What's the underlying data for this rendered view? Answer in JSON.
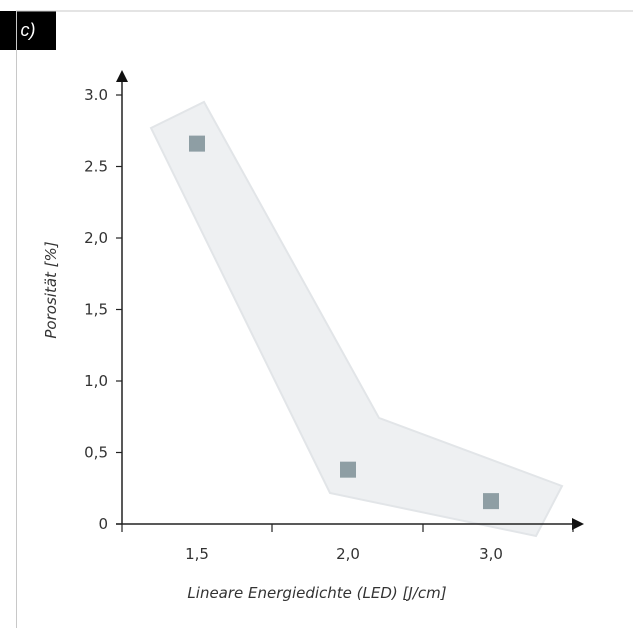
{
  "panel_label": "c)",
  "colors": {
    "marker": "#8e9ea4",
    "band_fill": "#eef0f2",
    "band_stroke": "#e2e5e8",
    "axis": "#222222",
    "frame": "#c8c8c8"
  },
  "chart_data": {
    "type": "scatter",
    "title": "",
    "xlabel": "Lineare Energiedichte (LED) [J/cm]",
    "ylabel": "Porosität [%]",
    "categories": [
      "1,5",
      "2,0",
      "3,0"
    ],
    "y_ticks": [
      "0",
      "0,5",
      "1,0",
      "1,5",
      "2,0",
      "2.5",
      "3.0"
    ],
    "ylim": [
      0,
      3.0
    ],
    "grid": false,
    "legend": false,
    "series": [
      {
        "x": [
          "1,5",
          "2,0",
          "3,0"
        ],
        "values": [
          2.66,
          0.38,
          0.16
        ]
      }
    ],
    "trend_band": true
  }
}
